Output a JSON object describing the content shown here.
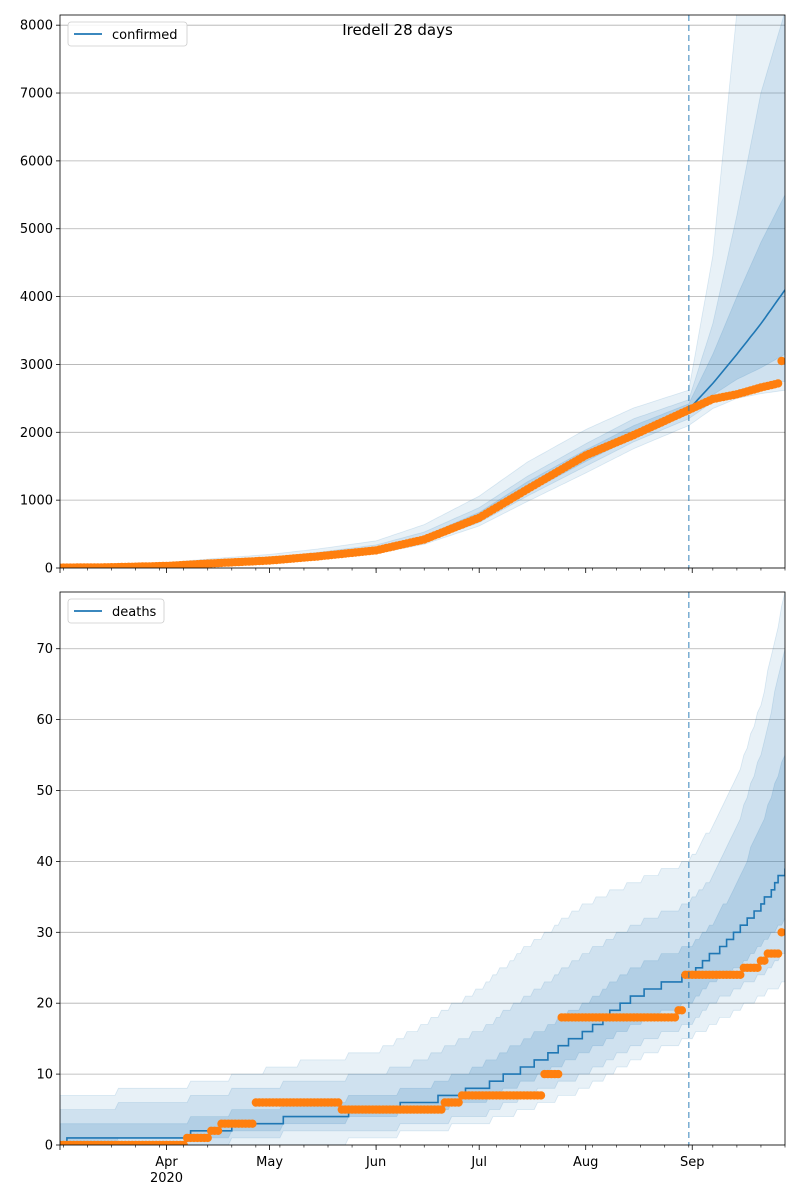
{
  "figure": {
    "title": "Iredell 28 days"
  },
  "colors": {
    "model": "#1f77b4",
    "observed": "#ff7f0e",
    "grid": "#b0b0b0",
    "band": "#1f77b4",
    "forecast_line": "#1f77b4"
  },
  "chart_data": [
    {
      "type": "line",
      "name": "confirmed-panel",
      "legend": [
        "confirmed"
      ],
      "legend_position": "top-left",
      "grid": "y",
      "x_range": [
        "2020-03-01",
        "2020-09-28"
      ],
      "ylim": [
        0,
        8150
      ],
      "y_ticks": [
        0,
        1000,
        2000,
        3000,
        4000,
        5000,
        6000,
        7000,
        8000
      ],
      "forecast_start": "2020-08-31",
      "model": {
        "dates": [
          "2020-03-01",
          "2020-03-15",
          "2020-04-01",
          "2020-04-15",
          "2020-05-01",
          "2020-05-15",
          "2020-06-01",
          "2020-06-15",
          "2020-07-01",
          "2020-07-15",
          "2020-08-01",
          "2020-08-15",
          "2020-08-31",
          "2020-09-07",
          "2020-09-14",
          "2020-09-21",
          "2020-09-28"
        ],
        "median": [
          0,
          5,
          30,
          70,
          110,
          170,
          260,
          420,
          740,
          1160,
          1640,
          2000,
          2340,
          2720,
          3150,
          3600,
          4100
        ],
        "bands": [
          {
            "lo": [
              0,
              0,
              10,
              40,
              70,
              130,
              210,
              350,
              620,
              980,
              1400,
              1760,
              2100,
              2350,
              2500,
              2570,
              2620
            ],
            "hi": [
              20,
              40,
              80,
              140,
              200,
              280,
              400,
              640,
              1060,
              1560,
              2040,
              2360,
              2620,
              4600,
              8200,
              8200,
              8200
            ]
          },
          {
            "lo": [
              0,
              2,
              18,
              52,
              85,
              145,
              230,
              380,
              670,
              1060,
              1500,
              1860,
              2200,
              2450,
              2600,
              2700,
              2750
            ],
            "hi": [
              10,
              20,
              55,
              105,
              155,
              230,
              340,
              530,
              890,
              1350,
              1830,
              2200,
              2480,
              3600,
              5200,
              7000,
              8200
            ]
          },
          {
            "lo": [
              0,
              3,
              24,
              62,
              100,
              160,
              245,
              400,
              700,
              1110,
              1570,
              1930,
              2270,
              2550,
              2780,
              2950,
              3150
            ],
            "hi": [
              5,
              12,
              40,
              85,
              130,
              200,
              300,
              470,
              820,
              1270,
              1740,
              2100,
              2420,
              3150,
              4000,
              4800,
              5500
            ]
          }
        ]
      },
      "observed": {
        "dates": [
          "2020-03-01",
          "2020-03-15",
          "2020-04-01",
          "2020-04-15",
          "2020-05-01",
          "2020-05-15",
          "2020-06-01",
          "2020-06-15",
          "2020-07-01",
          "2020-07-15",
          "2020-08-01",
          "2020-08-15",
          "2020-08-31",
          "2020-09-07",
          "2020-09-14",
          "2020-09-21",
          "2020-09-26",
          "2020-09-27"
        ],
        "values": [
          5,
          10,
          30,
          70,
          110,
          170,
          260,
          420,
          740,
          1160,
          1660,
          1960,
          2330,
          2490,
          2560,
          2660,
          2720,
          3050
        ]
      }
    },
    {
      "type": "line",
      "name": "deaths-panel",
      "legend": [
        "deaths"
      ],
      "legend_position": "top-left",
      "grid": "y",
      "x_range": [
        "2020-03-01",
        "2020-09-28"
      ],
      "x_tick_labels": [
        "Apr",
        "May",
        "Jun",
        "Jul",
        "Aug",
        "Sep"
      ],
      "x_tick_dates": [
        "2020-04-01",
        "2020-05-01",
        "2020-06-01",
        "2020-07-01",
        "2020-08-01",
        "2020-09-01"
      ],
      "x_year_label": "2020",
      "ylim": [
        0,
        78
      ],
      "y_ticks": [
        0,
        10,
        20,
        30,
        40,
        50,
        60,
        70
      ],
      "forecast_start": "2020-08-31",
      "model": {
        "dates": [
          "2020-03-01",
          "2020-03-05",
          "2020-03-31",
          "2020-04-15",
          "2020-04-25",
          "2020-05-15",
          "2020-06-01",
          "2020-06-15",
          "2020-07-01",
          "2020-07-15",
          "2020-08-01",
          "2020-08-15",
          "2020-08-31",
          "2020-09-07",
          "2020-09-14",
          "2020-09-21",
          "2020-09-28"
        ],
        "median": [
          0,
          1,
          1,
          2,
          3,
          4,
          5,
          6,
          8,
          11,
          16,
          21,
          24,
          27,
          30,
          34,
          39
        ],
        "bands": [
          {
            "lo": [
              0,
              0,
              0,
              0,
              0,
              0,
              1,
              2,
              3,
              5,
              8,
              12,
              15,
              17,
              19,
              21,
              23
            ],
            "hi": [
              7,
              7,
              8,
              9,
              10,
              12,
              13,
              17,
              22,
              28,
              34,
              37,
              40,
              45,
              52,
              62,
              78
            ]
          },
          {
            "lo": [
              0,
              0,
              0,
              0,
              1,
              2,
              2,
              3,
              4,
              7,
              10,
              14,
              17,
              20,
              22,
              24,
              27
            ],
            "hi": [
              5,
              5,
              6,
              7,
              8,
              9,
              10,
              12,
              16,
              21,
              27,
              31,
              34,
              38,
              45,
              55,
              70
            ]
          },
          {
            "lo": [
              0,
              0,
              1,
              1,
              2,
              3,
              4,
              5,
              6,
              9,
              13,
              17,
              20,
              23,
              25,
              28,
              32
            ],
            "hi": [
              3,
              3,
              3,
              4,
              5,
              6,
              7,
              8,
              11,
              15,
              20,
              25,
              28,
              31,
              37,
              45,
              55
            ]
          }
        ]
      },
      "observed": {
        "dates": [
          "2020-03-01",
          "2020-04-07",
          "2020-04-14",
          "2020-04-17",
          "2020-04-27",
          "2020-05-20",
          "2020-05-22",
          "2020-06-21",
          "2020-06-26",
          "2020-07-20",
          "2020-07-25",
          "2020-08-20",
          "2020-08-28",
          "2020-08-30",
          "2020-09-16",
          "2020-09-21",
          "2020-09-23",
          "2020-09-27"
        ],
        "values": [
          0,
          1,
          2,
          3,
          6,
          6,
          5,
          6,
          7,
          10,
          18,
          18,
          19,
          24,
          25,
          26,
          27,
          30
        ]
      }
    }
  ]
}
